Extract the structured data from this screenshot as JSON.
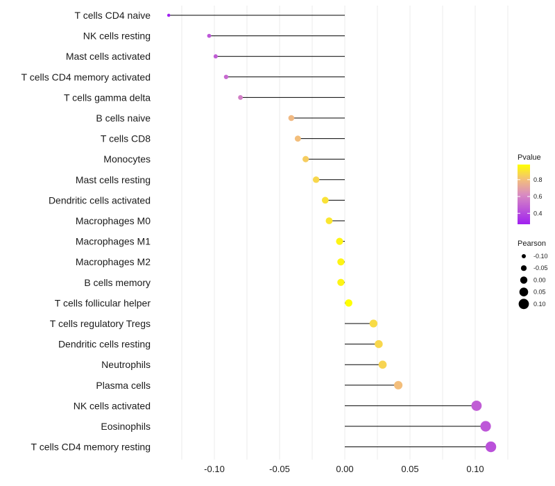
{
  "chart_data": {
    "type": "lollipop",
    "categories": [
      "T cells CD4 naive",
      "NK cells resting",
      "Mast cells activated",
      "T cells CD4 memory activated",
      "T cells gamma delta",
      "B cells naive",
      "T cells CD8",
      "Monocytes",
      "Mast cells resting",
      "Dendritic cells activated",
      "Macrophages M0",
      "Macrophages M1",
      "Macrophages M2",
      "B cells memory",
      "T cells follicular helper",
      "T cells regulatory  Tregs",
      "Dendritic cells resting",
      "Neutrophils",
      "Plasma cells",
      "NK cells activated",
      "Eosinophils",
      "T cells CD4 memory resting"
    ],
    "values": [
      -0.135,
      -0.104,
      -0.099,
      -0.091,
      -0.08,
      -0.041,
      -0.036,
      -0.03,
      -0.022,
      -0.015,
      -0.012,
      -0.004,
      -0.003,
      -0.003,
      0.003,
      0.022,
      0.026,
      0.029,
      0.041,
      0.101,
      0.108,
      0.112
    ],
    "pvalues": [
      0.27,
      0.45,
      0.47,
      0.51,
      0.58,
      0.78,
      0.8,
      0.84,
      0.87,
      0.9,
      0.91,
      0.95,
      0.95,
      0.95,
      0.98,
      0.88,
      0.87,
      0.86,
      0.8,
      0.47,
      0.45,
      0.43
    ],
    "xlim": [
      -0.14,
      0.12
    ],
    "x_ticks": [
      -0.1,
      -0.05,
      0.0,
      0.05,
      0.1
    ],
    "x_tick_labels": [
      "-0.10",
      "-0.05",
      "0.00",
      "0.05",
      "0.10"
    ],
    "xlabel": "",
    "ylabel": "",
    "legend_pvalue": {
      "title": "Pvalue",
      "ticks": [
        0.4,
        0.6,
        0.8
      ],
      "tick_labels": [
        "0.4",
        "0.6",
        "0.8"
      ],
      "range": [
        0.27,
        0.98
      ],
      "color_low": "#a020f0",
      "color_mid": "#f0a870",
      "color_high": "#ffff00"
    },
    "legend_pearson": {
      "title": "Pearson",
      "values": [
        -0.1,
        -0.05,
        0.0,
        0.05,
        0.1
      ],
      "labels": [
        "-0.10",
        "-0.05",
        "0.00",
        "0.05",
        "0.10"
      ]
    },
    "colors": {
      "stem": "#000000",
      "grid": "#ebebeb",
      "text": "#1a1a1a"
    }
  }
}
